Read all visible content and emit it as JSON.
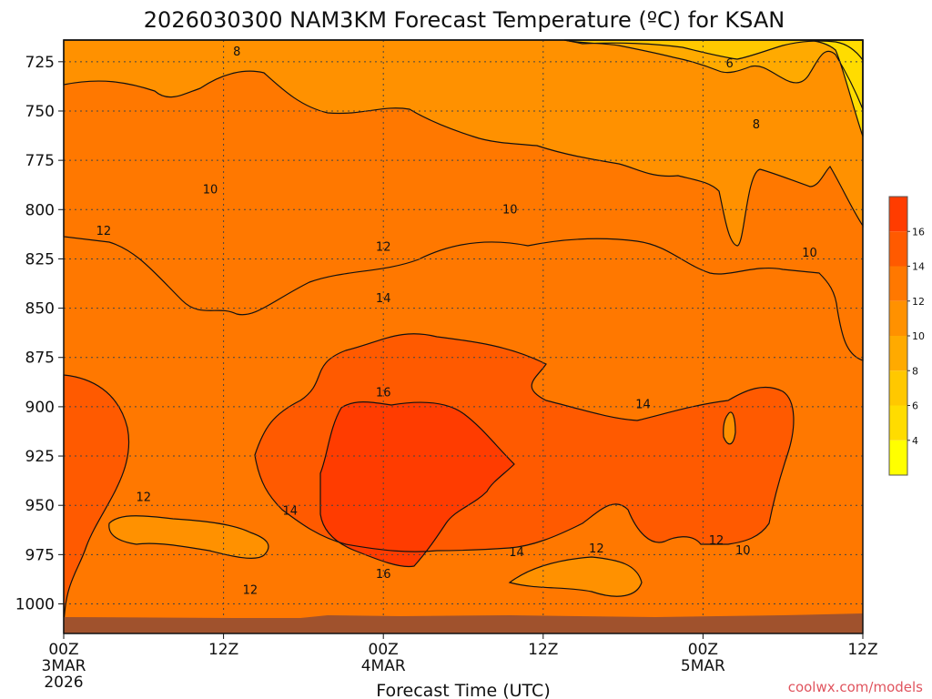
{
  "chart_data": {
    "type": "heatmap",
    "title": "2026030300 NAM3KM Forecast Temperature (ºC) for KSAN",
    "xlabel": "Forecast Time (UTC)",
    "ylabel": "",
    "credit": "coolwx.com/models",
    "x_range_hours": [
      0,
      60
    ],
    "y_range_hPa": [
      1015,
      714
    ],
    "y_ticks": [
      725,
      750,
      775,
      800,
      825,
      850,
      875,
      900,
      925,
      950,
      975,
      1000
    ],
    "x_ticks": [
      {
        "hour": 0,
        "lines": [
          "00Z",
          "3MAR",
          "2026"
        ]
      },
      {
        "hour": 12,
        "lines": [
          "12Z"
        ]
      },
      {
        "hour": 24,
        "lines": [
          "00Z",
          "4MAR"
        ]
      },
      {
        "hour": 36,
        "lines": [
          "12Z"
        ]
      },
      {
        "hour": 48,
        "lines": [
          "00Z",
          "5MAR"
        ]
      },
      {
        "hour": 60,
        "lines": [
          "12Z"
        ]
      }
    ],
    "colorbar": {
      "ticks": [
        4,
        6,
        8,
        10,
        12,
        14,
        16
      ],
      "bands": [
        {
          "min": 2,
          "max": 4,
          "color": "#ffff00"
        },
        {
          "min": 4,
          "max": 6,
          "color": "#ffdc00"
        },
        {
          "min": 6,
          "max": 8,
          "color": "#ffc800"
        },
        {
          "min": 8,
          "max": 10,
          "color": "#ffaa00"
        },
        {
          "min": 10,
          "max": 12,
          "color": "#ff9100"
        },
        {
          "min": 12,
          "max": 14,
          "color": "#ff7800"
        },
        {
          "min": 14,
          "max": 16,
          "color": "#ff5a00"
        },
        {
          "min": 16,
          "max": 18,
          "color": "#ff3c00"
        }
      ]
    },
    "terrain_color": "#a0522d",
    "contour_labels": [
      {
        "text": "8",
        "hour": 13.0,
        "p": 720
      },
      {
        "text": "6",
        "hour": 50.0,
        "p": 726
      },
      {
        "text": "8",
        "hour": 52.0,
        "p": 757
      },
      {
        "text": "10",
        "hour": 11.0,
        "p": 790
      },
      {
        "text": "10",
        "hour": 33.5,
        "p": 800
      },
      {
        "text": "12",
        "hour": 3.0,
        "p": 811
      },
      {
        "text": "12",
        "hour": 24.0,
        "p": 819
      },
      {
        "text": "10",
        "hour": 56.0,
        "p": 822
      },
      {
        "text": "14",
        "hour": 24.0,
        "p": 845
      },
      {
        "text": "16",
        "hour": 24.0,
        "p": 893
      },
      {
        "text": "14",
        "hour": 43.5,
        "p": 899
      },
      {
        "text": "12",
        "hour": 6.0,
        "p": 946
      },
      {
        "text": "14",
        "hour": 17.0,
        "p": 953
      },
      {
        "text": "12",
        "hour": 49.0,
        "p": 968
      },
      {
        "text": "12",
        "hour": 40.0,
        "p": 972
      },
      {
        "text": "14",
        "hour": 34.0,
        "p": 974
      },
      {
        "text": "10",
        "hour": 51.0,
        "p": 973
      },
      {
        "text": "16",
        "hour": 24.0,
        "p": 985
      },
      {
        "text": "12",
        "hour": 14.0,
        "p": 993
      }
    ]
  }
}
